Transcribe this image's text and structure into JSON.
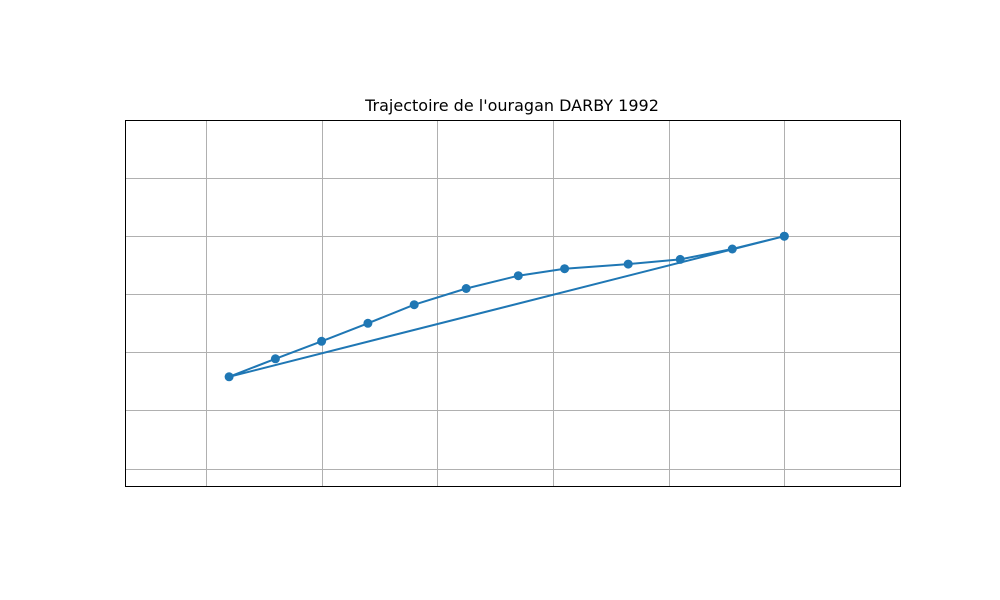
{
  "chart_data": {
    "type": "line",
    "title": "Trajectoire de l'ouragan DARBY 1992",
    "xlabel": "",
    "ylabel": "",
    "xlim": [
      -110.9,
      -97.5
    ],
    "ylim": [
      12.8,
      19.1
    ],
    "x_gridlines": [
      -109.5,
      -107.5,
      -105.5,
      -103.5,
      -101.5,
      -99.5
    ],
    "y_gridlines": [
      13.1,
      14.1,
      15.1,
      16.1,
      17.1,
      18.1
    ],
    "grid": true,
    "series": [
      {
        "name": "DARBY 1992",
        "color": "#1f77b4",
        "lon": [
          -99.5,
          -100.4,
          -101.3,
          -102.2,
          -103.3,
          -104.1,
          -105.0,
          -105.9,
          -106.7,
          -107.5,
          -108.3,
          -109.1,
          -99.5
        ],
        "lat": [
          17.1,
          16.88,
          16.7,
          16.62,
          16.54,
          16.42,
          16.2,
          15.92,
          15.6,
          15.29,
          14.99,
          14.68,
          17.1
        ]
      }
    ]
  }
}
